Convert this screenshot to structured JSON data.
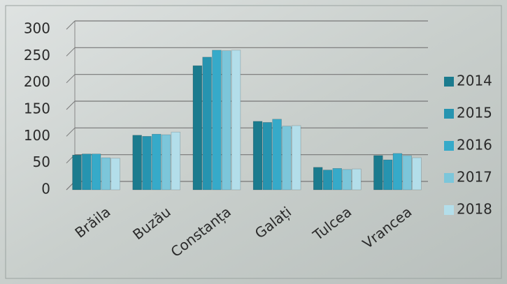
{
  "chart_data": {
    "type": "bar",
    "categories": [
      "Brăila",
      "Buzău",
      "Constanța",
      "Galați",
      "Tulcea",
      "Vrancea"
    ],
    "series": [
      {
        "name": "2014",
        "color": "#1b7b8e",
        "values": [
          65,
          102,
          232,
          128,
          42,
          64
        ]
      },
      {
        "name": "2015",
        "color": "#2694b0",
        "values": [
          67,
          100,
          248,
          126,
          37,
          56
        ]
      },
      {
        "name": "2016",
        "color": "#36aac9",
        "values": [
          67,
          104,
          261,
          132,
          40,
          68
        ]
      },
      {
        "name": "2017",
        "color": "#7cc6da",
        "values": [
          60,
          103,
          260,
          119,
          38,
          64
        ]
      },
      {
        "name": "2018",
        "color": "#b3deea",
        "values": [
          59,
          108,
          261,
          120,
          39,
          60
        ]
      }
    ],
    "ylim": [
      0,
      300
    ],
    "yticks": [
      0,
      50,
      100,
      150,
      200,
      250,
      300
    ],
    "grid": true,
    "legend": "right"
  }
}
